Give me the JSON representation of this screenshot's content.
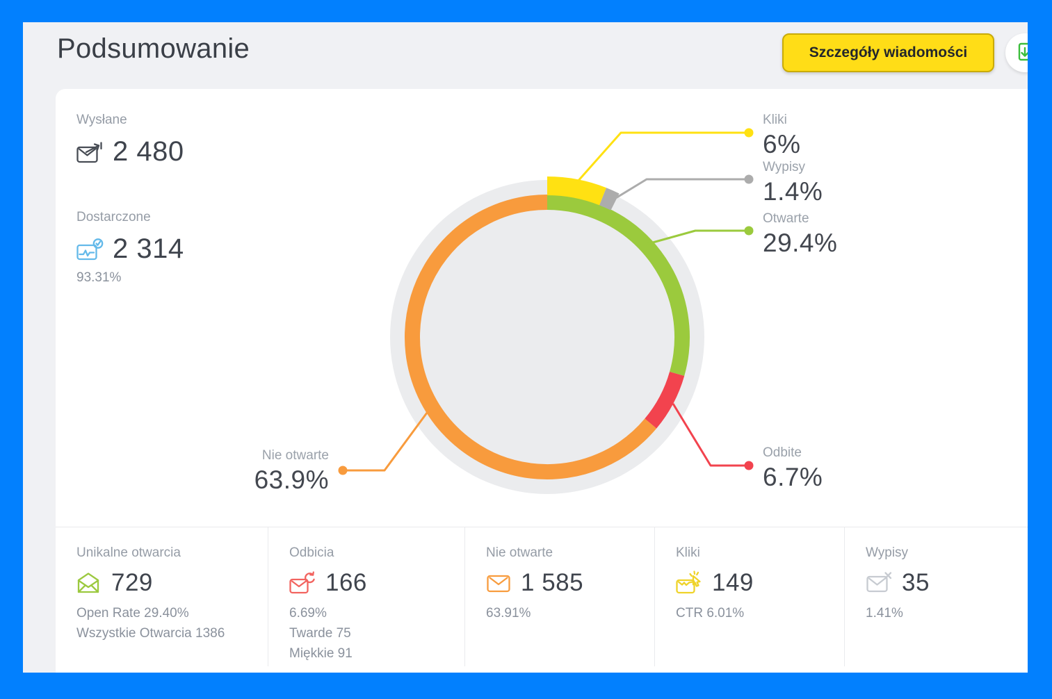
{
  "window": {
    "frame_color": "#0280FE",
    "card_bg": "#F0F1F4"
  },
  "header": {
    "title": "Podsumowanie",
    "details_button": "Szczegóły wiadomości"
  },
  "summary": {
    "sent": {
      "label": "Wysłane",
      "value": "2 480"
    },
    "delivered": {
      "label": "Dostarczone",
      "value": "2 314",
      "percent": "93.31%"
    }
  },
  "chart_data": {
    "type": "donut",
    "disc_color": "#EBECEE",
    "series": [
      {
        "name": "Kliki",
        "value_pct": 6,
        "label": "6%",
        "color": "#FFE112",
        "ring": "overlay"
      },
      {
        "name": "Wypisy",
        "value_pct": 1.4,
        "label": "1.4%",
        "color": "#ACACAC",
        "ring": "overlay"
      },
      {
        "name": "Otwarte",
        "value_pct": 29.4,
        "label": "29.4%",
        "color": "#9BCA3D",
        "ring": "main"
      },
      {
        "name": "Odbite",
        "value_pct": 6.7,
        "label": "6.7%",
        "color": "#F2434E",
        "ring": "main"
      },
      {
        "name": "Nie otwarte",
        "value_pct": 63.9,
        "label": "63.9%",
        "color": "#F89B3D",
        "ring": "main"
      }
    ]
  },
  "stats_row": [
    {
      "label": "Unikalne otwarcia",
      "value": "729",
      "icon_color": "#9CC93F",
      "lines": [
        "Open Rate 29.40%",
        "Wszystkie Otwarcia 1386"
      ]
    },
    {
      "label": "Odbicia",
      "value": "166",
      "icon_color": "#F2635F",
      "lines": [
        "6.69%",
        "Twarde 75",
        "Miękkie 91"
      ]
    },
    {
      "label": "Nie otwarte",
      "value": "1 585",
      "icon_color": "#F89C3E",
      "lines": [
        "63.91%"
      ]
    },
    {
      "label": "Kliki",
      "value": "149",
      "icon_color": "#EFD329",
      "lines": [
        "CTR 6.01%"
      ]
    },
    {
      "label": "Wypisy",
      "value": "35",
      "icon_color": "#C7CBD1",
      "lines": [
        "1.41%"
      ]
    }
  ],
  "icons": {
    "sent_color": "#474C54",
    "delivered_color": "#63B9E9",
    "export_color": "#3CBD3C"
  }
}
